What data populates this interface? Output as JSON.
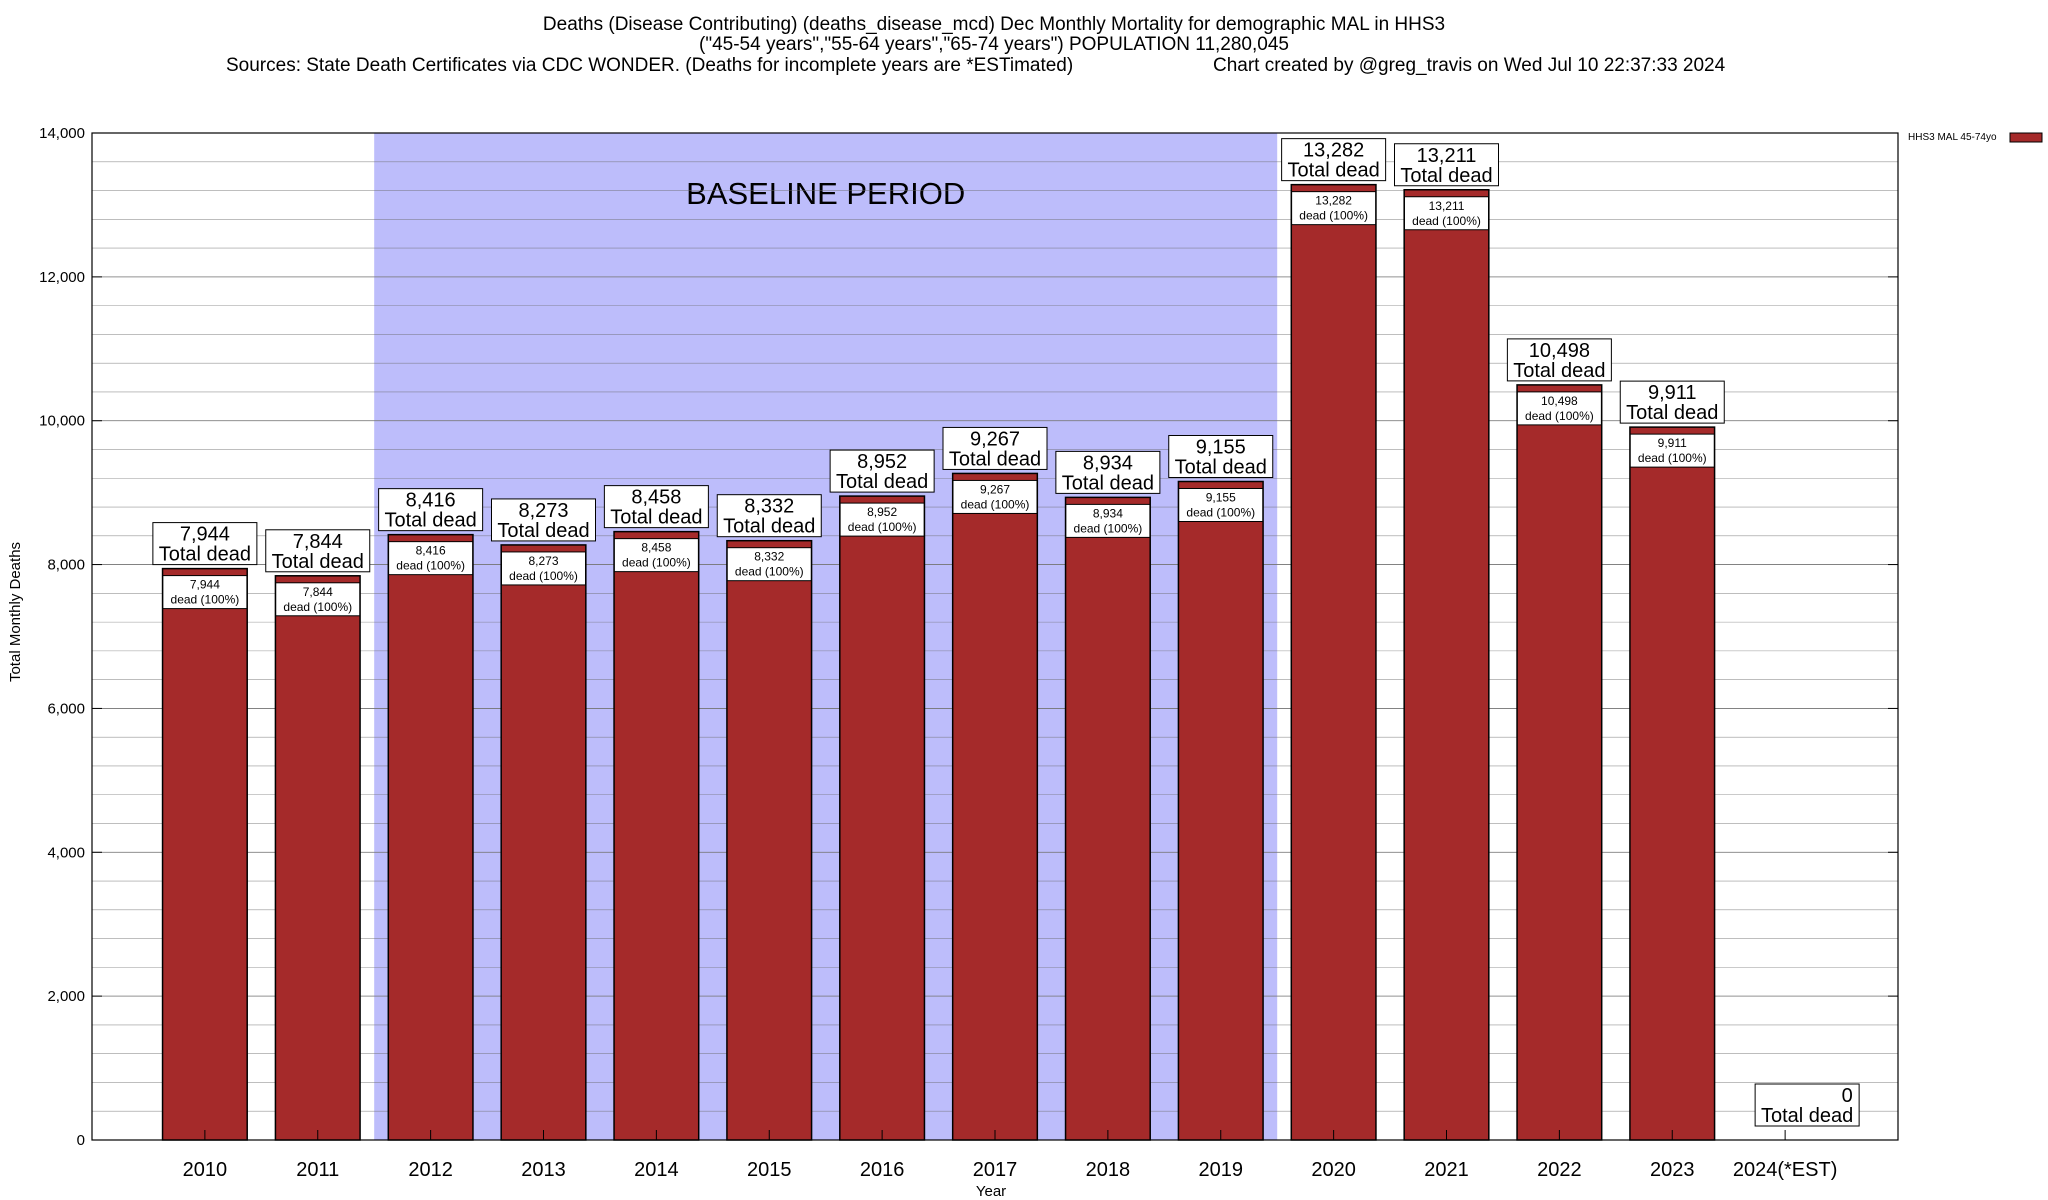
{
  "header": {
    "title_lines": [
      "Deaths (Disease Contributing) (deaths_disease_mcd) Dec Monthly Mortality for demographic MAL in HHS3",
      "(\"45-54 years\",\"55-64 years\",\"65-74 years\") POPULATION 11,280,045"
    ],
    "sources": "Sources: State Death Certificates via CDC WONDER. (Deaths for incomplete years are *ESTimated)",
    "credit": "Chart created by @greg_travis on Wed Jul 10 22:37:33 2024"
  },
  "chart_data": {
    "type": "bar",
    "categories": [
      "2010",
      "2011",
      "2012",
      "2013",
      "2014",
      "2015",
      "2016",
      "2017",
      "2018",
      "2019",
      "2020",
      "2021",
      "2022",
      "2023",
      "2024(*EST)"
    ],
    "values": [
      7944,
      7844,
      8416,
      8273,
      8458,
      8332,
      8952,
      9267,
      8934,
      9155,
      13282,
      13211,
      10498,
      9911,
      0
    ],
    "series": [
      {
        "name": "HHS3 MAL 45-74yo",
        "color": "#a52a2a"
      }
    ],
    "top_labels": [
      "7,944",
      "7,844",
      "8,416",
      "8,273",
      "8,458",
      "8,332",
      "8,952",
      "9,267",
      "8,934",
      "9,155",
      "13,282",
      "13,211",
      "10,498",
      "9,911",
      "0"
    ],
    "top_label_suffix": "Total dead",
    "inner_labels": [
      "7,944",
      "7,844",
      "8,416",
      "8,273",
      "8,458",
      "8,332",
      "8,952",
      "9,267",
      "8,934",
      "9,155",
      "13,282",
      "13,211",
      "10,498",
      "9,911",
      ""
    ],
    "inner_label_suffix": "dead (100%)",
    "xlabel": "Year",
    "ylabel": "Total Monthly Deaths",
    "ylim": [
      0,
      14000
    ],
    "yticks": [
      0,
      2000,
      4000,
      6000,
      8000,
      10000,
      12000,
      14000
    ],
    "ytick_labels": [
      "0",
      "2,000",
      "4,000",
      "6,000",
      "8,000",
      "10,000",
      "12,000",
      "14,000"
    ],
    "minor_step": 400,
    "grid": true,
    "legend": "top-right",
    "annotation": {
      "text": "BASELINE PERIOD",
      "start_category": "2012",
      "end_category": "2019",
      "color": "#bdbdfb"
    }
  }
}
